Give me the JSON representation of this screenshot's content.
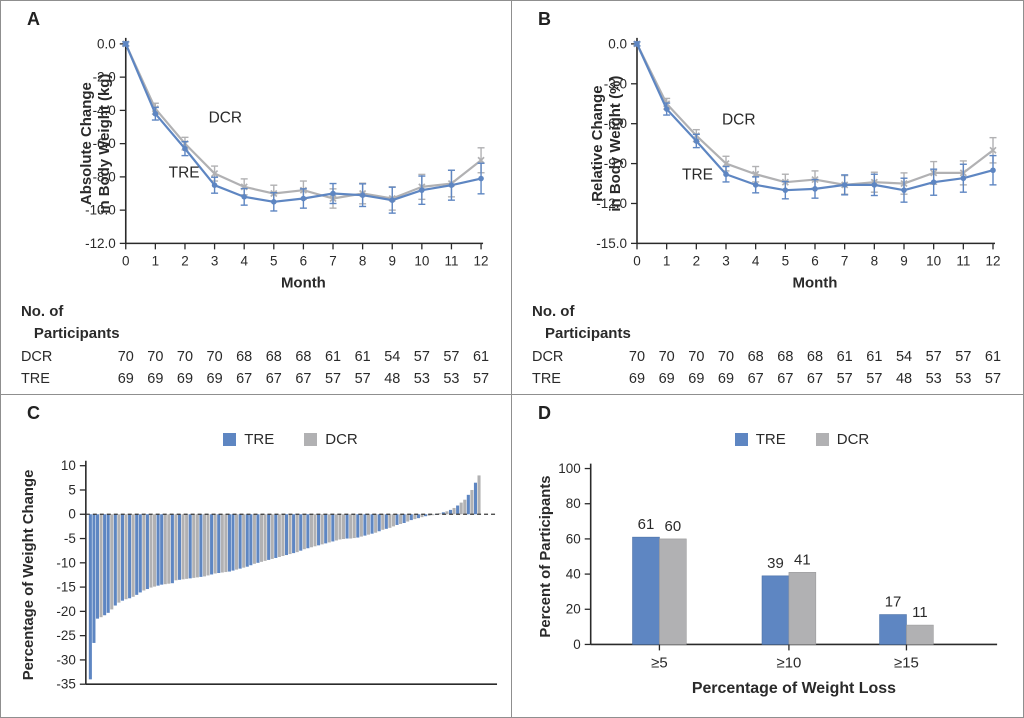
{
  "legend": {
    "tre": "TRE",
    "dcr": "DCR"
  },
  "colors": {
    "tre": "#5e86c2",
    "dcr": "#b1b1b3",
    "text": "#2a2a2a",
    "axis": "#2a2a2a",
    "border": "#8f8f8f"
  },
  "participants": {
    "heading_line1": "No. of",
    "heading_line2": "Participants",
    "rows": [
      {
        "label": "DCR",
        "counts": [
          70,
          70,
          70,
          70,
          68,
          68,
          68,
          61,
          61,
          54,
          57,
          57,
          61
        ]
      },
      {
        "label": "TRE",
        "counts": [
          69,
          69,
          69,
          69,
          67,
          67,
          67,
          57,
          57,
          48,
          53,
          53,
          57
        ]
      }
    ]
  },
  "chart_data": [
    {
      "panel": "A",
      "type": "line",
      "ylabel_line1": "Absolute Change",
      "ylabel_line2": "in Body Weight (kg)",
      "xlabel": "Month",
      "ymin": -12,
      "ymax": 0,
      "ytick_labels": [
        "0.0",
        "-2.0",
        "-4.0",
        "-6.0",
        "-8.0",
        "-10.0",
        "-12.0"
      ],
      "x": [
        0,
        1,
        2,
        3,
        4,
        5,
        6,
        7,
        8,
        9,
        10,
        11,
        12
      ],
      "series": [
        {
          "name": "DCR",
          "values": [
            0,
            -3.9,
            -6.0,
            -7.8,
            -8.6,
            -9.0,
            -8.8,
            -9.3,
            -9.0,
            -9.3,
            -8.6,
            -8.4,
            -7.0
          ],
          "err": [
            0.12,
            0.33,
            0.38,
            0.45,
            0.48,
            0.5,
            0.55,
            0.58,
            0.62,
            0.7,
            0.75,
            0.8,
            0.75
          ]
        },
        {
          "name": "TRE",
          "values": [
            0,
            -4.2,
            -6.3,
            -8.5,
            -9.2,
            -9.5,
            -9.3,
            -9.0,
            -9.1,
            -9.4,
            -8.8,
            -8.5,
            -8.1
          ],
          "err": [
            0.12,
            0.38,
            0.42,
            0.48,
            0.5,
            0.55,
            0.58,
            0.6,
            0.68,
            0.78,
            0.85,
            0.9,
            0.92
          ]
        }
      ]
    },
    {
      "panel": "B",
      "type": "line",
      "ylabel_line1": "Relative Change",
      "ylabel_line2": "in Body Weight (%)",
      "xlabel": "Month",
      "ymin": -15,
      "ymax": 0,
      "ytick_labels": [
        "0.0",
        "-3.0",
        "-6.0",
        "-9.0",
        "-12.0",
        "-15.0"
      ],
      "x": [
        0,
        1,
        2,
        3,
        4,
        5,
        6,
        7,
        8,
        9,
        10,
        11,
        12
      ],
      "series": [
        {
          "name": "DCR",
          "values": [
            0,
            -4.5,
            -6.9,
            -9.0,
            -9.8,
            -10.4,
            -10.2,
            -10.6,
            -10.4,
            -10.5,
            -9.7,
            -9.7,
            -8.0
          ],
          "err": [
            0.15,
            0.4,
            0.45,
            0.55,
            0.58,
            0.6,
            0.65,
            0.7,
            0.75,
            0.8,
            0.85,
            0.9,
            0.95
          ]
        },
        {
          "name": "TRE",
          "values": [
            0,
            -4.9,
            -7.3,
            -9.8,
            -10.6,
            -11.0,
            -10.9,
            -10.6,
            -10.6,
            -11.0,
            -10.4,
            -10.1,
            -9.5
          ],
          "err": [
            0.15,
            0.45,
            0.5,
            0.58,
            0.6,
            0.65,
            0.7,
            0.75,
            0.8,
            0.9,
            0.98,
            1.05,
            1.1
          ]
        }
      ]
    },
    {
      "panel": "C",
      "type": "waterfall",
      "ylabel": "Percentage of Weight Change",
      "yticks": [
        10,
        5,
        0,
        -5,
        -10,
        -15,
        -20,
        -25,
        -30,
        -35
      ],
      "values": [
        -34.0,
        -26.5,
        -21.5,
        -21.2,
        -20.8,
        -20.3,
        -19.6,
        -18.8,
        -18.2,
        -17.8,
        -17.5,
        -17.3,
        -17.0,
        -16.6,
        -16.1,
        -15.7,
        -15.4,
        -15.1,
        -14.9,
        -14.7,
        -14.5,
        -14.4,
        -14.3,
        -14.2,
        -13.6,
        -13.5,
        -13.4,
        -13.3,
        -13.2,
        -13.1,
        -13.0,
        -12.9,
        -12.8,
        -12.6,
        -12.4,
        -12.2,
        -12.1,
        -12.0,
        -11.9,
        -11.8,
        -11.6,
        -11.4,
        -11.2,
        -11.0,
        -10.8,
        -10.5,
        -10.2,
        -10.0,
        -9.8,
        -9.6,
        -9.4,
        -9.2,
        -9.0,
        -8.8,
        -8.6,
        -8.4,
        -8.2,
        -8.0,
        -7.8,
        -7.5,
        -7.2,
        -7.0,
        -6.8,
        -6.6,
        -6.4,
        -6.2,
        -6.0,
        -5.8,
        -5.6,
        -5.4,
        -5.2,
        -5.1,
        -5.0,
        -5.0,
        -4.9,
        -4.8,
        -4.6,
        -4.4,
        -4.2,
        -4.0,
        -3.8,
        -3.5,
        -3.2,
        -3.0,
        -2.8,
        -2.5,
        -2.2,
        -2.0,
        -1.8,
        -1.5,
        -1.2,
        -1.0,
        -0.8,
        -0.6,
        -0.4,
        -0.3,
        -0.2,
        -0.1,
        0.2,
        0.4,
        0.6,
        0.9,
        1.3,
        1.8,
        2.4,
        3.0,
        4.0,
        5.0,
        6.5,
        8.0
      ],
      "groups": "BBBGBBGBGBGBGBBGBGGBBGGBGBGGBGGBGGBGBGGBBGBGBBGBGGBGBGGBGBGBGBGGBGBGBGGGBGGBGBGBGBGBGGBGBGBGBGBGGBGBGBGBGGBGBG"
    },
    {
      "panel": "D",
      "type": "bar",
      "ylabel": "Percent of Participants",
      "xlabel": "Percentage of Weight Loss",
      "categories": [
        "≥5",
        "≥10",
        "≥15"
      ],
      "yticks": [
        0,
        20,
        40,
        60,
        80,
        100
      ],
      "ylim": [
        0,
        100
      ],
      "series": [
        {
          "name": "TRE",
          "values": [
            61,
            39,
            17
          ]
        },
        {
          "name": "DCR",
          "values": [
            60,
            41,
            11
          ]
        }
      ]
    }
  ]
}
